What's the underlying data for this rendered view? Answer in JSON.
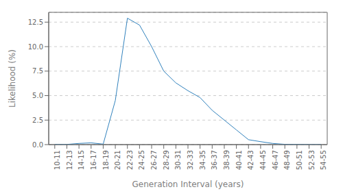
{
  "chart_data": {
    "type": "line",
    "x": [
      10.5,
      12.5,
      14.5,
      16.5,
      18.5,
      20.5,
      22.5,
      24.5,
      26.5,
      28.5,
      30.5,
      32.5,
      34.5,
      36.5,
      38.5,
      40.5,
      42.5,
      44.5,
      46.5,
      48.5,
      50.5,
      52.5,
      54.5
    ],
    "values": [
      0.02,
      0.02,
      0.12,
      0.18,
      0.05,
      4.5,
      12.9,
      12.2,
      10.0,
      7.5,
      6.3,
      5.5,
      4.8,
      3.5,
      2.5,
      1.5,
      0.5,
      0.3,
      0.12,
      0.03,
      0.02,
      0.01,
      0.01
    ],
    "xlabel": "Generation Interval (years)",
    "ylabel": "Likelihood (%)",
    "xlim": [
      9.5,
      55.5
    ],
    "xticks": [
      {
        "value": 10.5,
        "label": "10-11"
      },
      {
        "value": 12.5,
        "label": "12-13"
      },
      {
        "value": 14.5,
        "label": "14-15"
      },
      {
        "value": 16.5,
        "label": "16-17"
      },
      {
        "value": 18.5,
        "label": "18-19"
      },
      {
        "value": 20.5,
        "label": "20-21"
      },
      {
        "value": 22.5,
        "label": "22-23"
      },
      {
        "value": 24.5,
        "label": "24-25"
      },
      {
        "value": 26.5,
        "label": "26-27"
      },
      {
        "value": 28.5,
        "label": "28-29"
      },
      {
        "value": 30.5,
        "label": "30-31"
      },
      {
        "value": 32.5,
        "label": "32-33"
      },
      {
        "value": 34.5,
        "label": "34-35"
      },
      {
        "value": 36.5,
        "label": "36-37"
      },
      {
        "value": 38.5,
        "label": "38-39"
      },
      {
        "value": 40.5,
        "label": "40-41"
      },
      {
        "value": 42.5,
        "label": "42-43"
      },
      {
        "value": 44.5,
        "label": "44-45"
      },
      {
        "value": 46.5,
        "label": "46-47"
      },
      {
        "value": 48.5,
        "label": "48-49"
      },
      {
        "value": 50.5,
        "label": "50-51"
      },
      {
        "value": 52.5,
        "label": "52-53"
      },
      {
        "value": 54.5,
        "label": "54-55"
      }
    ],
    "ylim": [
      0,
      13.5
    ],
    "yticks": [
      {
        "value": 0.0,
        "label": "0.0"
      },
      2.5,
      {
        "value": 5.0,
        "label": "5.0"
      },
      7.5,
      {
        "value": 10.0,
        "label": "10.0"
      },
      12.5
    ],
    "grid": "y"
  }
}
